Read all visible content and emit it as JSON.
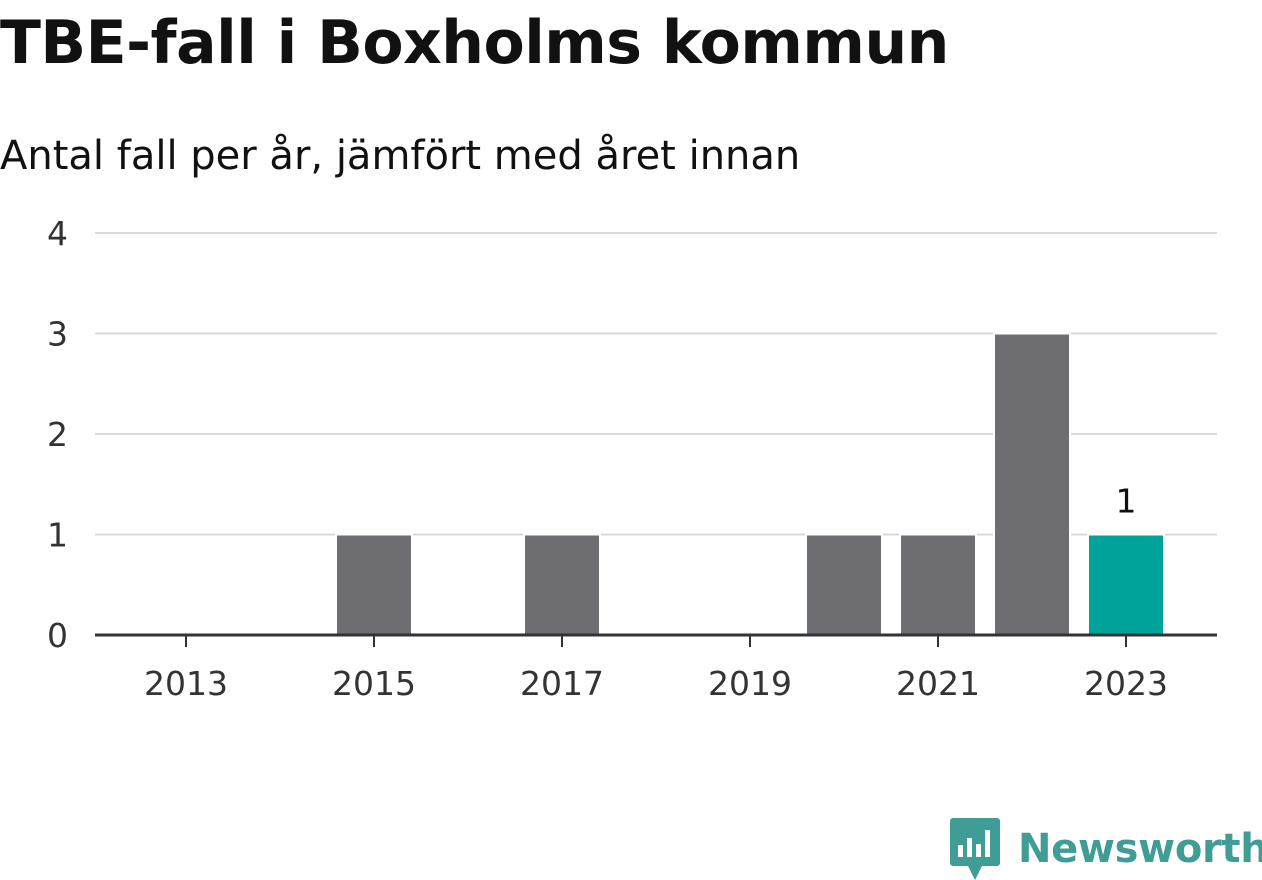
{
  "title": "TBE-fall i Boxholms kommun",
  "subtitle": "Antal fall per år, jämfört med året innan",
  "brand": {
    "name": "Newsworthy",
    "icon": "newsworthy-logo-icon",
    "color": "#3f9d96"
  },
  "colors": {
    "bar": "#6e6d72",
    "highlight": "#00a39a",
    "grid": "#d9d9d9",
    "axis": "#333333"
  },
  "chart_data": {
    "type": "bar",
    "title": "",
    "categories": [
      "2013",
      "2014",
      "2015",
      "2016",
      "2017",
      "2018",
      "2019",
      "2020",
      "2021",
      "2022",
      "2023"
    ],
    "values": [
      0,
      0,
      1,
      0,
      1,
      0,
      0,
      1,
      1,
      3,
      1
    ],
    "highlight_index": 10,
    "xtick_labels": [
      "2013",
      "2015",
      "2017",
      "2019",
      "2021",
      "2023"
    ],
    "yticks": [
      0,
      1,
      2,
      3,
      4
    ],
    "ylim": [
      0,
      4
    ],
    "grid": true,
    "legend": "none",
    "data_labels": [
      {
        "category": "2023",
        "text": "1"
      }
    ],
    "xlabel": "",
    "ylabel": ""
  }
}
